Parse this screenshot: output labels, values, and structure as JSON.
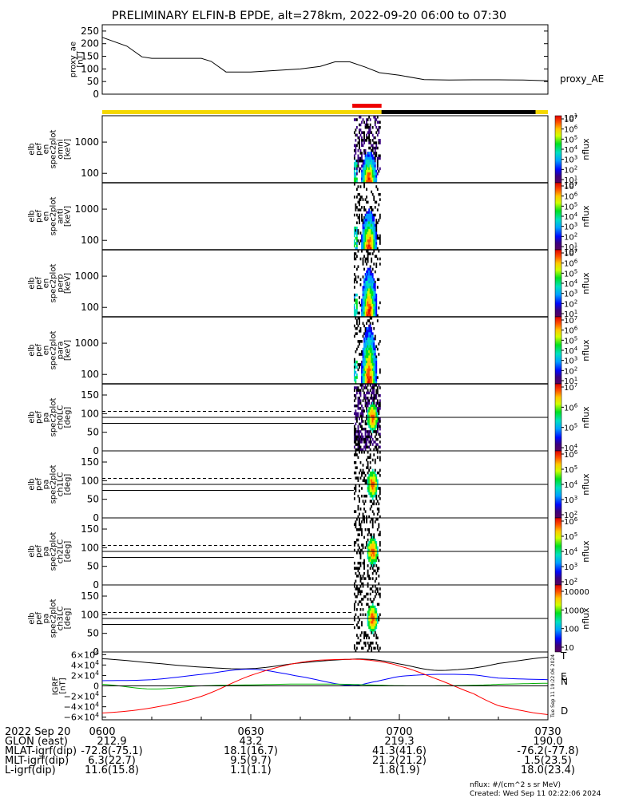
{
  "title": "PRELIMINARY ELFIN-B EPDE, alt=278km, 2022-09-20 06:00 to 07:30",
  "ae_panel": {
    "ylabel_lines": [
      "proxy_ae",
      "[nT]"
    ],
    "yticks": [
      "250",
      "200",
      "150",
      "100",
      "50",
      "0"
    ],
    "series_label": "proxy_AE",
    "ylim": [
      0,
      275
    ]
  },
  "spec_panels": [
    {
      "ylabel_lines": [
        "elb",
        "pef",
        "en",
        "spec2plot",
        "omni",
        "[keV]"
      ],
      "yticks": [
        "1000",
        "100"
      ]
    },
    {
      "ylabel_lines": [
        "elb",
        "pef",
        "en",
        "spec2plot",
        "anti",
        "[keV]"
      ],
      "yticks": [
        "1000",
        "100"
      ]
    },
    {
      "ylabel_lines": [
        "elb",
        "pef",
        "en",
        "spec2plot",
        "perp",
        "[keV]"
      ],
      "yticks": [
        "1000",
        "100"
      ]
    },
    {
      "ylabel_lines": [
        "elb",
        "pef",
        "en",
        "spec2plot",
        "para",
        "[keV]"
      ],
      "yticks": [
        "1000",
        "100"
      ]
    }
  ],
  "pa_panels": [
    {
      "ylabel_lines": [
        "elb",
        "pef",
        "pa",
        "spec2plot",
        "ch0LC",
        "[deg]"
      ],
      "yticks": [
        "150",
        "100",
        "50",
        "0"
      ]
    },
    {
      "ylabel_lines": [
        "elb",
        "pef",
        "pa",
        "spec2plot",
        "ch1LC",
        "[deg]"
      ],
      "yticks": [
        "150",
        "100",
        "50",
        "0"
      ]
    },
    {
      "ylabel_lines": [
        "elb",
        "pef",
        "pa",
        "spec2plot",
        "ch2LC",
        "[deg]"
      ],
      "yticks": [
        "150",
        "100",
        "50",
        "0"
      ]
    },
    {
      "ylabel_lines": [
        "elb",
        "pef",
        "pa",
        "spec2plot",
        "ch3LC",
        "[deg]"
      ],
      "yticks": [
        "150",
        "100",
        "50",
        "0"
      ]
    }
  ],
  "colorbars": [
    {
      "label": "nflux",
      "ticks": [
        [
          "10",
          1
        ],
        [
          "10",
          2
        ],
        [
          "10",
          3
        ],
        [
          "10",
          4
        ],
        [
          "10",
          5
        ],
        [
          "10",
          6
        ],
        [
          "10",
          7
        ]
      ],
      "ticks2": [
        [
          "10",
          1
        ]
      ]
    },
    {
      "label": "nflux",
      "ticks": [
        [
          "10",
          1
        ],
        [
          "10",
          2
        ],
        [
          "10",
          3
        ],
        [
          "10",
          4
        ],
        [
          "10",
          5
        ],
        [
          "10",
          6
        ],
        [
          "10",
          7
        ]
      ],
      "ticks2": [
        [
          "10",
          1
        ]
      ]
    },
    {
      "label": "nflux",
      "ticks": [
        [
          "10",
          1
        ],
        [
          "10",
          2
        ],
        [
          "10",
          3
        ],
        [
          "10",
          4
        ],
        [
          "10",
          5
        ],
        [
          "10",
          6
        ],
        [
          "10",
          7
        ]
      ],
      "ticks2": [
        [
          "10",
          1
        ]
      ]
    },
    {
      "label": "nflux",
      "ticks": [
        [
          "10",
          1
        ],
        [
          "10",
          2
        ],
        [
          "10",
          3
        ],
        [
          "10",
          4
        ],
        [
          "10",
          5
        ],
        [
          "10",
          6
        ],
        [
          "10",
          7
        ]
      ],
      "ticks2": []
    },
    {
      "label": "nflux",
      "ticks": [
        [
          "10",
          4
        ],
        [
          "10",
          5
        ],
        [
          "10",
          6
        ],
        [
          "10",
          7
        ]
      ],
      "ticks2": []
    },
    {
      "label": "nflux",
      "ticks": [
        [
          "10",
          2
        ],
        [
          "10",
          3
        ],
        [
          "10",
          4
        ],
        [
          "10",
          5
        ],
        [
          "10",
          6
        ]
      ],
      "ticks2": []
    },
    {
      "label": "nflux",
      "ticks": [
        [
          "10",
          2
        ],
        [
          "10",
          3
        ],
        [
          "10",
          4
        ],
        [
          "10",
          5
        ],
        [
          "10",
          6
        ]
      ],
      "ticks2": []
    },
    {
      "label": "nflux",
      "ticks_plain": [
        "10000",
        "1000",
        "100",
        "10"
      ]
    }
  ],
  "grf_panel": {
    "ylabel_lines": [
      "IGRF",
      "[nT]"
    ],
    "yticks": [
      [
        "6×10",
        4
      ],
      [
        "4×10",
        4
      ],
      [
        "2×10",
        4
      ],
      [
        "0",
        null
      ],
      [
        "−2×10",
        4
      ],
      [
        "−4×10",
        4
      ],
      [
        "−6×10",
        4
      ]
    ],
    "legend": [
      {
        "label": "T",
        "color": "#000000"
      },
      {
        "label": "E",
        "color": "#00b000"
      },
      {
        "label": "N",
        "color": "#0000ff"
      },
      {
        "label": "D",
        "color": "#ff0000"
      }
    ],
    "side_stamp": "Tue Sep 11 19:22:06 2024"
  },
  "time_axis": {
    "labels": [
      "0600",
      "0630",
      "0700",
      "0730"
    ],
    "date": "2022 Sep 20"
  },
  "ephemeris": [
    {
      "name": "GLON (east)",
      "values": [
        "212.9",
        "43.2",
        "219.3",
        "190.0"
      ]
    },
    {
      "name": "MLAT-igrf(dip)",
      "values": [
        "-72.8(-75.1)",
        "18.1(16.7)",
        "41.3(41.6)",
        "-76.2(-77.8)"
      ]
    },
    {
      "name": "MLT-igrf(dip)",
      "values": [
        "6.3(22.7)",
        "9.5(9.7)",
        "21.2(21.2)",
        "1.5(23.5)"
      ]
    },
    {
      "name": "L-igrf(dip)",
      "values": [
        "11.6(15.8)",
        "1.1(1.1)",
        "1.8(1.9)",
        "18.0(23.4)"
      ]
    }
  ],
  "footer": {
    "units": "nflux: #/(cm^2 s sr MeV)",
    "created": "Created: Wed Sep 11 02:22:06 2024"
  },
  "status_bar": {
    "colors": {
      "yellow": "#f5d800",
      "black": "#000000",
      "red": "#ee0000"
    }
  },
  "chart_data": {
    "type": "heatmap",
    "title": "PRELIMINARY ELFIN-B EPDE, alt=278km, 2022-09-20 06:00 to 07:30",
    "x_range": [
      "06:00",
      "07:30"
    ],
    "science_zone": [
      "06:49",
      "06:56"
    ],
    "proxy_ae": {
      "unit": "nT",
      "ylim": [
        0,
        275
      ],
      "t_minutes": [
        0,
        5,
        8,
        10,
        20,
        22,
        25,
        30,
        40,
        44,
        47,
        50,
        53,
        56,
        60,
        65,
        70,
        75,
        80,
        85,
        90
      ],
      "values": [
        225,
        190,
        148,
        142,
        142,
        130,
        88,
        88,
        100,
        110,
        128,
        128,
        108,
        85,
        75,
        58,
        56,
        57,
        57,
        56,
        53
      ]
    },
    "energy_spectrograms": [
      "omni",
      "anti",
      "perp",
      "para"
    ],
    "pitch_angle_spectrograms": [
      "ch0LC",
      "ch1LC",
      "ch2LC",
      "ch3LC"
    ],
    "energy_range_keV": [
      50,
      7000
    ],
    "pitch_angle_range_deg": [
      0,
      180
    ],
    "igrf": {
      "unit": "nT",
      "ylim": [
        -65000,
        65000
      ],
      "t_minutes": [
        0,
        10,
        20,
        30,
        40,
        50,
        55,
        60,
        67,
        75,
        80,
        90
      ],
      "T": [
        52000,
        44000,
        36000,
        33000,
        44000,
        51000,
        50000,
        42000,
        30000,
        34000,
        43000,
        55000
      ],
      "N": [
        10000,
        12000,
        22000,
        32000,
        18000,
        1000,
        8000,
        18000,
        22000,
        21000,
        15000,
        12000
      ],
      "E": [
        3000,
        -6000,
        0,
        2000,
        3500,
        3000,
        1500,
        300,
        200,
        1000,
        3000,
        5000
      ],
      "D": [
        -52000,
        -42000,
        -20000,
        20000,
        45000,
        51000,
        48000,
        38000,
        15000,
        -15000,
        -38000,
        -55000
      ]
    }
  }
}
